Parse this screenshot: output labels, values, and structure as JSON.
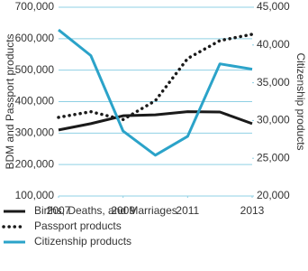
{
  "chart_data": {
    "type": "line",
    "x": [
      2007,
      2008,
      2009,
      2010,
      2011,
      2012,
      2013
    ],
    "xlim": [
      2007,
      2013
    ],
    "xticks": [
      2007,
      2009,
      2011,
      2013
    ],
    "ylabel": "BDM and Passport products",
    "y2label": "Citizenship products",
    "ylim": [
      100000,
      700000
    ],
    "yticks": [
      {
        "value": 100000,
        "label": "100,000"
      },
      {
        "value": 200000,
        "label": "200,000"
      },
      {
        "value": 300000,
        "label": "300,000"
      },
      {
        "value": 400000,
        "label": "400,000"
      },
      {
        "value": 500000,
        "label": "500,000"
      },
      {
        "value": 600000,
        "label": "600,000"
      },
      {
        "value": 700000,
        "label": "700,000"
      }
    ],
    "y2lim": [
      20000,
      45000
    ],
    "y2ticks": [
      {
        "value": 20000,
        "label": "20,000"
      },
      {
        "value": 25000,
        "label": "25,000"
      },
      {
        "value": 30000,
        "label": "30,000"
      },
      {
        "value": 35000,
        "label": "35,000"
      },
      {
        "value": 40000,
        "label": "40,000"
      },
      {
        "value": 45000,
        "label": "45,000"
      }
    ],
    "grid": true,
    "grid_color": "#8fd0e4",
    "legend": "bottom",
    "series": [
      {
        "name": "Births, Deaths, and Marriages",
        "color": "#1a1a1a",
        "style": "solid",
        "values": [
          310000,
          330000,
          355000,
          358000,
          368000,
          367000,
          330000
        ]
      },
      {
        "name": "Passport products",
        "color": "#1a1a1a",
        "style": "dotted",
        "values": [
          350000,
          368000,
          343000,
          403000,
          537000,
          594000,
          614000
        ]
      },
      {
        "name": "Citizenship products",
        "color": "#2ba3c9",
        "style": "solid",
        "axis": "y2",
        "values": [
          42000,
          38600,
          28600,
          25400,
          27900,
          37500,
          36800
        ]
      }
    ]
  }
}
